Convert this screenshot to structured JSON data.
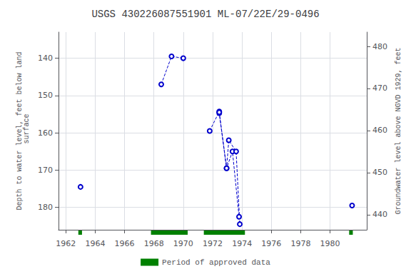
{
  "chart_data": {
    "type": "line",
    "title": "USGS 430226087551901 ML-07/22E/29-0496",
    "ylabel": "Depth to water level, feet below land\n surface",
    "y2label": "Groundwater level above NGVD 1929, feet",
    "xlim": [
      1961.5,
      1982.5
    ],
    "xticks": [
      1962,
      1964,
      1966,
      1968,
      1970,
      1972,
      1974,
      1976,
      1978,
      1980
    ],
    "ylim": [
      186,
      133
    ],
    "yticks": [
      140,
      150,
      160,
      170,
      180
    ],
    "y2lim": [
      436.4,
      483.4
    ],
    "y2ticks": [
      480,
      470,
      460,
      450,
      440
    ],
    "grid": true,
    "legend": "bottom",
    "series": [
      {
        "x": [
          1963.0
        ],
        "values": [
          174.5
        ],
        "color": "#0000cc",
        "line_style": "dashed",
        "marker": "open_circle"
      },
      {
        "x": [
          1968.5,
          1969.2,
          1970.0
        ],
        "values": [
          147.0,
          139.5,
          140.0
        ],
        "color": "#0000cc",
        "line_style": "dashed",
        "marker": "open_circle"
      },
      {
        "x": [
          1971.8,
          1972.45,
          1972.45,
          1972.95,
          1973.35,
          1973.8
        ],
        "values": [
          159.5,
          154.3,
          154.7,
          169.5,
          165.0,
          182.5
        ],
        "color": "#0000cc",
        "line_style": "dashed",
        "marker": "open_circle"
      },
      {
        "x": [
          1972.45,
          1972.95,
          1973.1,
          1973.6,
          1973.85
        ],
        "values": [
          154.5,
          169.5,
          162.0,
          165.0,
          184.5
        ],
        "color": "#0000cc",
        "line_style": "dashed",
        "marker": "open_circle"
      },
      {
        "x": [
          1981.5
        ],
        "values": [
          179.5
        ],
        "color": "#0000cc",
        "line_style": "dashed",
        "marker": "open_circle"
      },
      {
        "name": "Period of approved data",
        "type": "span",
        "color": "#008000",
        "periods": [
          [
            1962.85,
            1963.1
          ],
          [
            1967.8,
            1970.3
          ],
          [
            1971.4,
            1974.2
          ],
          [
            1981.3,
            1981.55
          ]
        ]
      }
    ]
  }
}
